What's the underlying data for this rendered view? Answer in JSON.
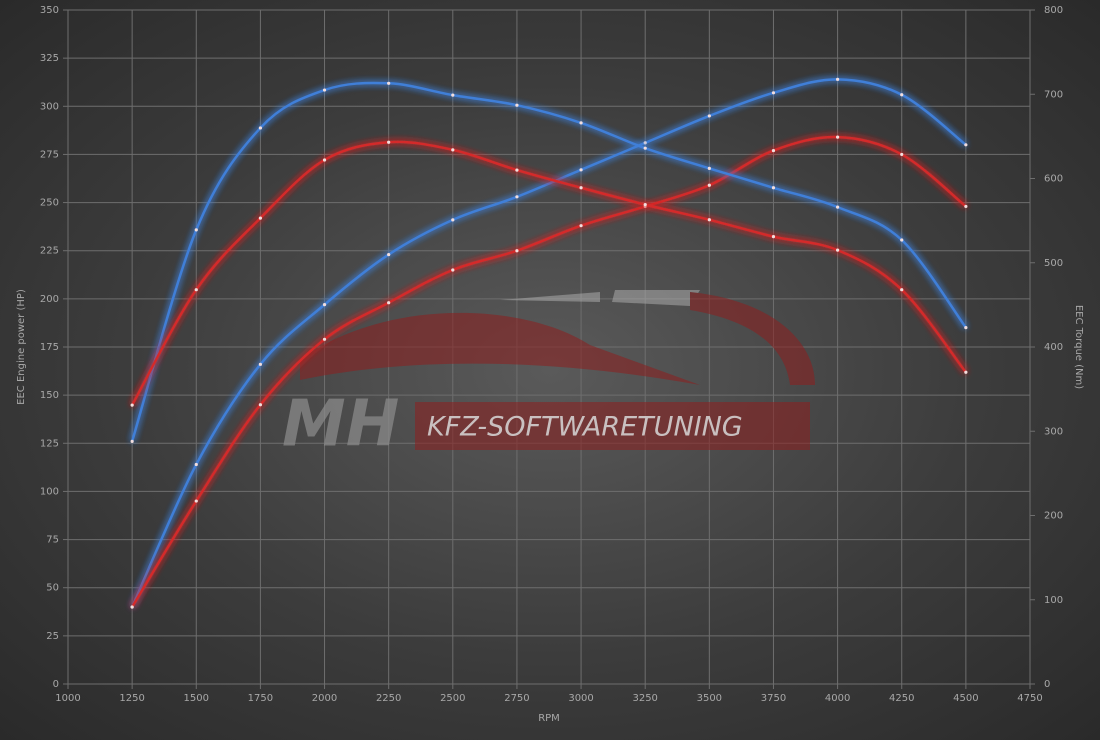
{
  "chart_data": {
    "type": "line",
    "xlabel": "RPM",
    "ylabel": "EEC Engine power (HP)",
    "y2label": "EEC Torque (Nm)",
    "annotations": [
      "MH",
      "KFZ-SOFTWARETUNING"
    ],
    "x": [
      1250,
      1500,
      1750,
      2000,
      2250,
      2500,
      2750,
      3000,
      3250,
      3500,
      3750,
      4000,
      4250,
      4500
    ],
    "xlim": [
      1000,
      4750
    ],
    "xticks": [
      1000,
      1250,
      1500,
      1750,
      2000,
      2250,
      2500,
      2750,
      3000,
      3250,
      3500,
      3750,
      4000,
      4250,
      4500,
      4750
    ],
    "ylim": [
      0,
      350
    ],
    "yticks": [
      0,
      25,
      50,
      75,
      100,
      125,
      150,
      175,
      200,
      225,
      250,
      275,
      300,
      325,
      350
    ],
    "y2lim": [
      0,
      800
    ],
    "y2ticks": [
      0,
      100,
      200,
      300,
      400,
      500,
      600,
      700,
      800
    ],
    "grid": true,
    "series": [
      {
        "color": "#3f7fd8",
        "values": [
          40,
          114,
          166,
          197,
          223,
          241,
          253,
          267,
          281,
          295,
          307,
          314,
          306,
          280
        ]
      },
      {
        "color": "#d42a2a",
        "values": [
          40,
          95,
          145,
          179,
          198,
          215,
          225,
          238,
          248,
          259,
          277,
          284,
          275,
          248
        ]
      },
      {
        "color": "#3f7fd8",
        "axis": "y2",
        "values": [
          288,
          539,
          660,
          705,
          713,
          699,
          687,
          666,
          636,
          612,
          589,
          566,
          527,
          423
        ]
      },
      {
        "color": "#d42a2a",
        "axis": "y2",
        "values": [
          331,
          468,
          553,
          622,
          643,
          634,
          610,
          589,
          569,
          551,
          531,
          515,
          468,
          370
        ]
      }
    ]
  }
}
